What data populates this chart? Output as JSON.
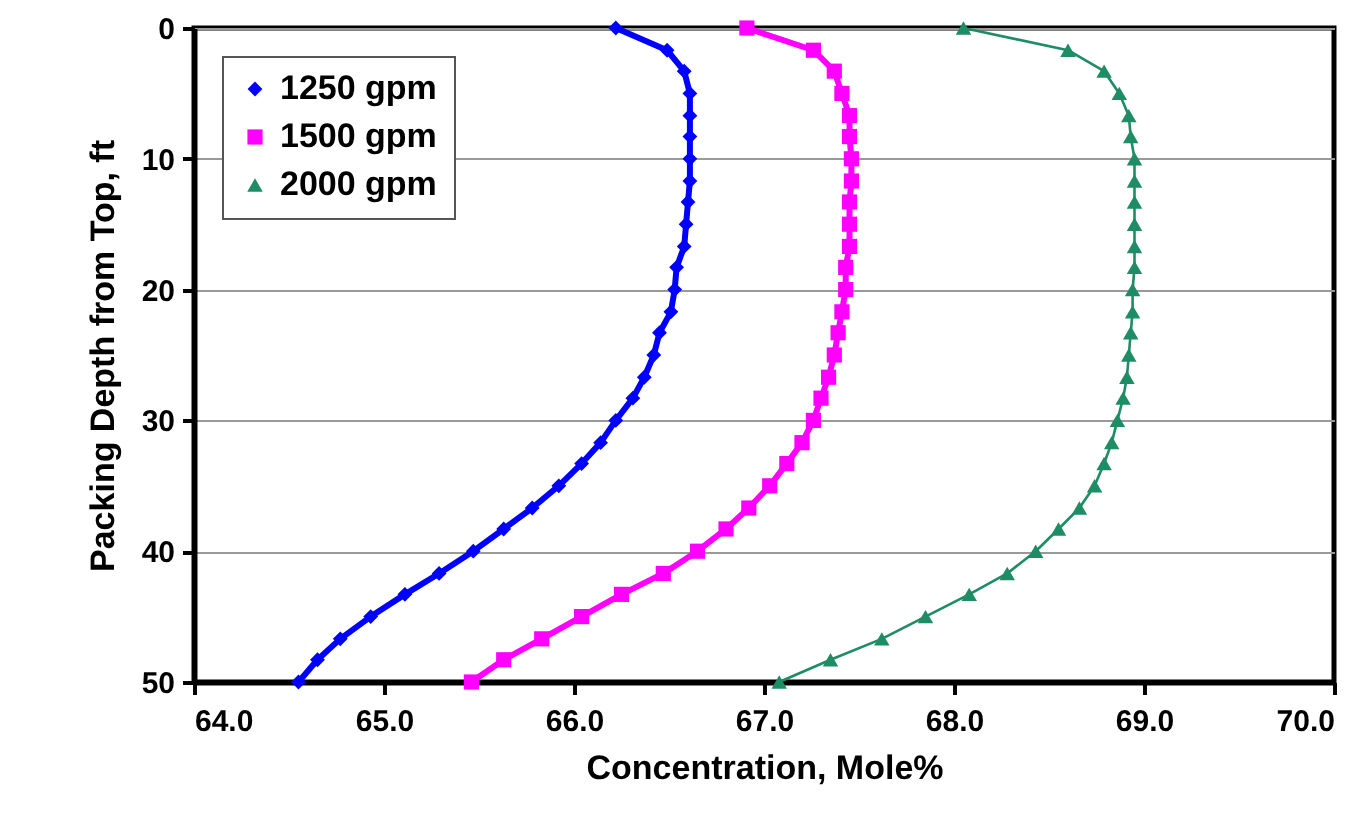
{
  "chart_data": {
    "type": "line",
    "xlabel": "Concentration, Mole%",
    "ylabel": "Packing Depth from Top, ft",
    "xlim": [
      64,
      70
    ],
    "xticks": [
      {
        "value": 64,
        "label": "64.0"
      },
      {
        "value": 65,
        "label": "65.0"
      },
      {
        "value": 66,
        "label": "66.0"
      },
      {
        "value": 67,
        "label": "67.0"
      },
      {
        "value": 68,
        "label": "68.0"
      },
      {
        "value": 69,
        "label": "69.0"
      },
      {
        "value": 70,
        "label": "70.0"
      }
    ],
    "ylim": [
      50,
      0
    ],
    "yticks": [
      0,
      10,
      20,
      30,
      40,
      50
    ],
    "grid": "y",
    "legend": "top left",
    "line_style": "solid",
    "series": [
      {
        "name": "1250 gpm",
        "color": "#0000ff",
        "marker": "diamond",
        "x": [
          66.22,
          66.49,
          66.58,
          66.61,
          66.61,
          66.61,
          66.61,
          66.61,
          66.6,
          66.59,
          66.58,
          66.54,
          66.53,
          66.51,
          66.45,
          66.42,
          66.37,
          66.31,
          66.22,
          66.14,
          66.04,
          65.92,
          65.78,
          65.63,
          65.47,
          65.29,
          65.11,
          64.93,
          64.77,
          64.65,
          64.55
        ],
        "values": [
          0,
          1.7,
          3.3,
          5,
          6.7,
          8.3,
          10,
          11.7,
          13.3,
          15,
          16.7,
          18.3,
          20,
          21.7,
          23.3,
          25,
          26.7,
          28.3,
          30,
          31.7,
          33.3,
          35,
          36.7,
          38.3,
          40,
          41.7,
          43.3,
          45,
          46.7,
          48.3,
          50
        ]
      },
      {
        "name": "1500 gpm",
        "color": "#ff00ff",
        "marker": "square",
        "x": [
          66.91,
          67.26,
          67.37,
          67.41,
          67.45,
          67.45,
          67.46,
          67.46,
          67.45,
          67.45,
          67.45,
          67.43,
          67.43,
          67.41,
          67.39,
          67.37,
          67.34,
          67.3,
          67.26,
          67.2,
          67.12,
          67.03,
          66.92,
          66.8,
          66.65,
          66.47,
          66.25,
          66.04,
          65.83,
          65.63,
          65.46
        ],
        "values": [
          0,
          1.7,
          3.3,
          5,
          6.7,
          8.3,
          10,
          11.7,
          13.3,
          15,
          16.7,
          18.3,
          20,
          21.7,
          23.3,
          25,
          26.7,
          28.3,
          30,
          31.7,
          33.3,
          35,
          36.7,
          38.3,
          40,
          41.7,
          43.3,
          45,
          46.7,
          48.3,
          50
        ]
      },
      {
        "name": "2000 gpm",
        "color": "#1e8c64",
        "marker": "triangle",
        "x": [
          68.05,
          68.6,
          68.79,
          68.87,
          68.92,
          68.93,
          68.95,
          68.95,
          68.95,
          68.95,
          68.95,
          68.95,
          68.94,
          68.94,
          68.93,
          68.92,
          68.91,
          68.89,
          68.86,
          68.83,
          68.79,
          68.74,
          68.66,
          68.55,
          68.43,
          68.28,
          68.08,
          67.85,
          67.62,
          67.35,
          67.08
        ],
        "values": [
          0,
          1.7,
          3.3,
          5,
          6.7,
          8.3,
          10,
          11.7,
          13.3,
          15,
          16.7,
          18.3,
          20,
          21.7,
          23.3,
          25,
          26.7,
          28.3,
          30,
          31.7,
          33.3,
          35,
          36.7,
          38.3,
          40,
          41.7,
          43.3,
          45,
          46.7,
          48.3,
          50
        ]
      }
    ]
  }
}
